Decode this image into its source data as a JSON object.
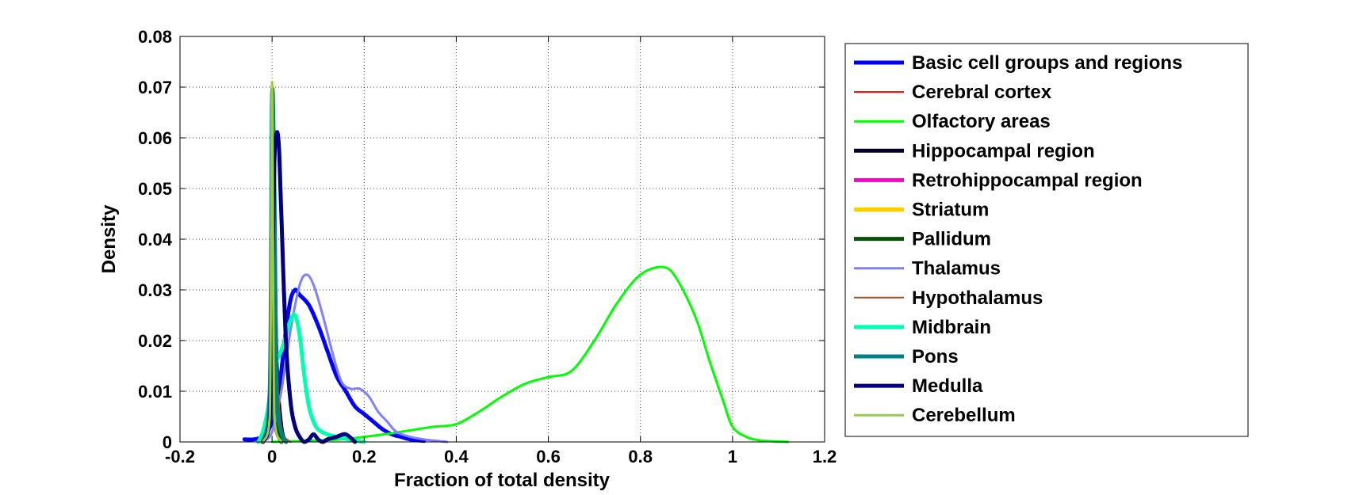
{
  "chart_data": {
    "type": "line",
    "title": "",
    "xlabel": "Fraction of total density",
    "ylabel": "Density",
    "xlim": [
      -0.2,
      1.2
    ],
    "ylim": [
      0,
      0.08
    ],
    "xticks": [
      -0.2,
      0,
      0.2,
      0.4,
      0.6,
      0.8,
      1,
      1.2
    ],
    "xtick_labels": [
      "-0.2",
      "0",
      "0.2",
      "0.4",
      "0.6",
      "0.8",
      "1",
      "1.2"
    ],
    "yticks": [
      0,
      0.01,
      0.02,
      0.03,
      0.04,
      0.05,
      0.06,
      0.07,
      0.08
    ],
    "ytick_labels": [
      "0",
      "0.01",
      "0.02",
      "0.03",
      "0.04",
      "0.05",
      "0.06",
      "0.07",
      "0.08"
    ],
    "grid": true,
    "legend_position": "outside-right",
    "series": [
      {
        "name": "Basic cell groups and regions",
        "color": "#0000ff",
        "width": 5,
        "x": [
          -0.06,
          -0.04,
          -0.02,
          -0.01,
          0.0,
          0.005,
          0.01,
          0.02,
          0.03,
          0.04,
          0.05,
          0.06,
          0.08,
          0.1,
          0.12,
          0.14,
          0.16,
          0.18,
          0.2,
          0.22,
          0.24,
          0.26,
          0.28,
          0.3,
          0.33
        ],
        "y": [
          0.0005,
          0.0005,
          0.001,
          0.002,
          0.004,
          0.006,
          0.008,
          0.014,
          0.022,
          0.028,
          0.03,
          0.029,
          0.027,
          0.023,
          0.018,
          0.013,
          0.01,
          0.007,
          0.0055,
          0.004,
          0.0025,
          0.0015,
          0.001,
          0.0005,
          0.0002
        ]
      },
      {
        "name": "Cerebral cortex",
        "color": "#ff0000",
        "width": 2,
        "x": [
          -0.03,
          -0.01,
          0.0,
          0.005,
          0.01,
          0.02,
          0.04
        ],
        "y": [
          0.0,
          0.003,
          0.02,
          0.062,
          0.02,
          0.003,
          0.0
        ]
      },
      {
        "name": "Olfactory areas",
        "color": "#00ff00",
        "width": 3,
        "x": [
          0.0,
          0.1,
          0.15,
          0.2,
          0.25,
          0.3,
          0.35,
          0.4,
          0.45,
          0.5,
          0.55,
          0.6,
          0.65,
          0.7,
          0.75,
          0.8,
          0.85,
          0.88,
          0.92,
          0.95,
          0.98,
          1.0,
          1.03,
          1.06,
          1.1,
          1.12
        ],
        "y": [
          0.0,
          0.0003,
          0.0005,
          0.001,
          0.0016,
          0.0023,
          0.003,
          0.0035,
          0.006,
          0.009,
          0.0115,
          0.0128,
          0.014,
          0.02,
          0.0275,
          0.033,
          0.0345,
          0.032,
          0.0245,
          0.016,
          0.008,
          0.003,
          0.001,
          0.0003,
          0.0001,
          0.0
        ]
      },
      {
        "name": "Hippocampal region",
        "color": "#00002a",
        "width": 5,
        "x": [
          -0.03,
          -0.01,
          0.0,
          0.005,
          0.01,
          0.02,
          0.03
        ],
        "y": [
          0.0,
          0.003,
          0.015,
          0.035,
          0.015,
          0.003,
          0.0
        ]
      },
      {
        "name": "Retrohippocampal region",
        "color": "#ff00cc",
        "width": 5,
        "x": [
          -0.02,
          -0.005,
          0.0,
          0.005,
          0.02
        ],
        "y": [
          0.0,
          0.005,
          0.025,
          0.005,
          0.0
        ]
      },
      {
        "name": "Striatum",
        "color": "#ffcc00",
        "width": 5,
        "x": [
          -0.02,
          -0.005,
          0.0,
          0.005,
          0.02
        ],
        "y": [
          0.0,
          0.01,
          0.04,
          0.01,
          0.0
        ]
      },
      {
        "name": "Pallidum",
        "color": "#005500",
        "width": 5,
        "x": [
          -0.02,
          -0.005,
          0.0,
          0.005,
          0.02
        ],
        "y": [
          0.0,
          0.005,
          0.02,
          0.005,
          0.0
        ]
      },
      {
        "name": "Thalamus",
        "color": "#7f7fff",
        "width": 3,
        "x": [
          -0.02,
          0.0,
          0.02,
          0.04,
          0.06,
          0.075,
          0.09,
          0.11,
          0.13,
          0.15,
          0.17,
          0.19,
          0.21,
          0.23,
          0.25,
          0.27,
          0.3,
          0.33,
          0.36,
          0.38
        ],
        "y": [
          0.0,
          0.002,
          0.01,
          0.022,
          0.031,
          0.033,
          0.031,
          0.025,
          0.018,
          0.012,
          0.0105,
          0.0105,
          0.009,
          0.006,
          0.004,
          0.002,
          0.001,
          0.0005,
          0.0002,
          0.0
        ]
      },
      {
        "name": "Hypothalamus",
        "color": "#a0522d",
        "width": 2,
        "x": [
          -0.03,
          -0.01,
          0.0,
          0.005,
          0.01,
          0.02,
          0.04
        ],
        "y": [
          0.0,
          0.003,
          0.018,
          0.05,
          0.018,
          0.003,
          0.0
        ]
      },
      {
        "name": "Midbrain",
        "color": "#00ffb0",
        "width": 5,
        "x": [
          -0.03,
          -0.02,
          -0.01,
          0.0,
          0.01,
          0.02,
          0.03,
          0.04,
          0.05,
          0.06,
          0.07,
          0.08,
          0.09,
          0.1,
          0.12,
          0.15,
          0.18,
          0.2
        ],
        "y": [
          0.0,
          0.002,
          0.006,
          0.012,
          0.016,
          0.018,
          0.021,
          0.024,
          0.025,
          0.021,
          0.013,
          0.007,
          0.004,
          0.0025,
          0.0015,
          0.0008,
          0.0003,
          0.0
        ]
      },
      {
        "name": "Pons",
        "color": "#008080",
        "width": 5,
        "x": [
          -0.02,
          -0.005,
          0.0,
          0.005,
          0.01,
          0.02,
          0.03
        ],
        "y": [
          0.0,
          0.01,
          0.068,
          0.05,
          0.01,
          0.002,
          0.0
        ]
      },
      {
        "name": "Medulla",
        "color": "#000080",
        "width": 5,
        "x": [
          -0.02,
          -0.005,
          0.0,
          0.005,
          0.01,
          0.015,
          0.02,
          0.03,
          0.04,
          0.05,
          0.06,
          0.07,
          0.08,
          0.09,
          0.1,
          0.11,
          0.12,
          0.14,
          0.16,
          0.18
        ],
        "y": [
          0.0,
          0.005,
          0.03,
          0.055,
          0.061,
          0.058,
          0.045,
          0.02,
          0.008,
          0.003,
          0.001,
          0.0,
          0.0005,
          0.0015,
          0.0005,
          0.0,
          0.0005,
          0.001,
          0.0015,
          0.0
        ]
      },
      {
        "name": "Cerebellum",
        "color": "#99cc44",
        "width": 3,
        "x": [
          -0.02,
          -0.005,
          0.0,
          0.005,
          0.02
        ],
        "y": [
          0.0,
          0.005,
          0.071,
          0.005,
          0.0
        ]
      }
    ]
  }
}
